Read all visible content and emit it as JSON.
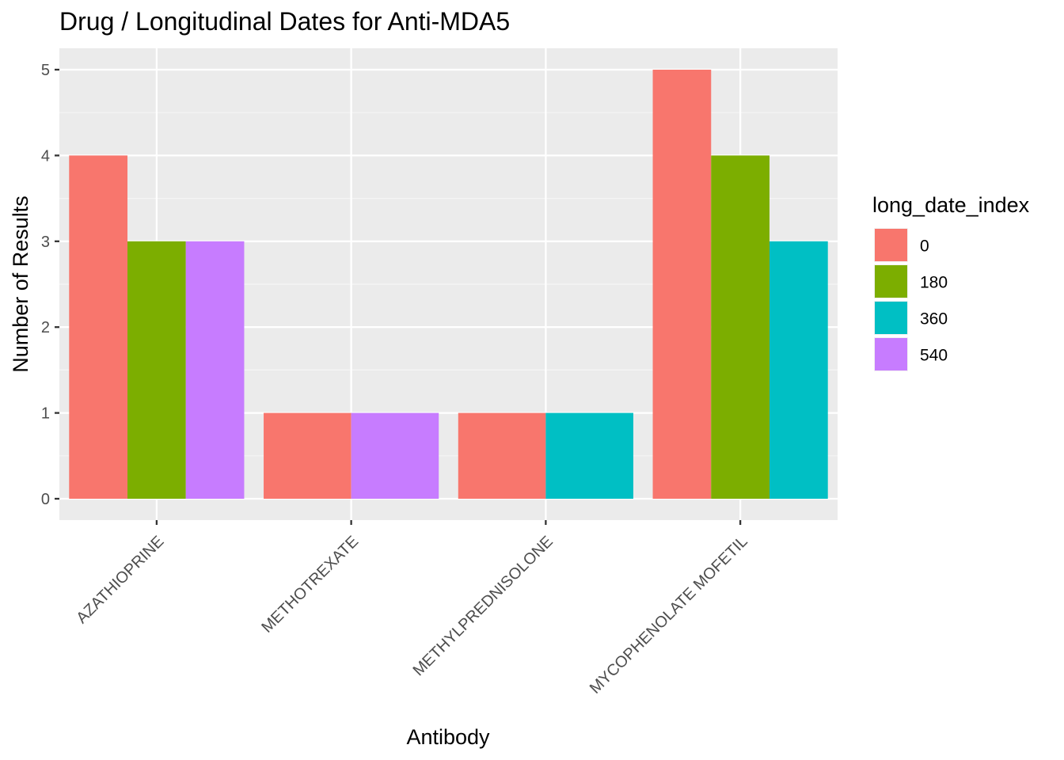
{
  "chart_data": {
    "type": "bar",
    "title": "Drug / Longitudinal Dates for Anti-MDA5",
    "xlabel": "Antibody",
    "ylabel": "Number of Results",
    "categories": [
      "AZATHIOPRINE",
      "METHOTREXATE",
      "METHYLPREDNISOLONE",
      "MYCOPHENOLATE MOFETIL"
    ],
    "ylim": [
      0,
      5
    ],
    "yticks": [
      0,
      1,
      2,
      3,
      4,
      5
    ],
    "grid": true,
    "bar_mode": "dodge",
    "legend": {
      "title": "long_date_index",
      "position": "right",
      "entries": [
        {
          "label": "0",
          "color": "#F8766D"
        },
        {
          "label": "180",
          "color": "#7CAE00"
        },
        {
          "label": "360",
          "color": "#00BFC4"
        },
        {
          "label": "540",
          "color": "#C77CFF"
        }
      ]
    },
    "series": [
      {
        "name": "0",
        "color": "#F8766D",
        "values": [
          4,
          1,
          1,
          5
        ]
      },
      {
        "name": "180",
        "color": "#7CAE00",
        "values": [
          3,
          null,
          null,
          4
        ]
      },
      {
        "name": "360",
        "color": "#00BFC4",
        "values": [
          null,
          null,
          1,
          3
        ]
      },
      {
        "name": "540",
        "color": "#C77CFF",
        "values": [
          3,
          1,
          null,
          null
        ]
      }
    ],
    "colors": {
      "panel_background": "#EBEBEB",
      "grid_major": "#FFFFFF",
      "grid_minor": "#F5F5F5",
      "tick": "#333333"
    }
  }
}
